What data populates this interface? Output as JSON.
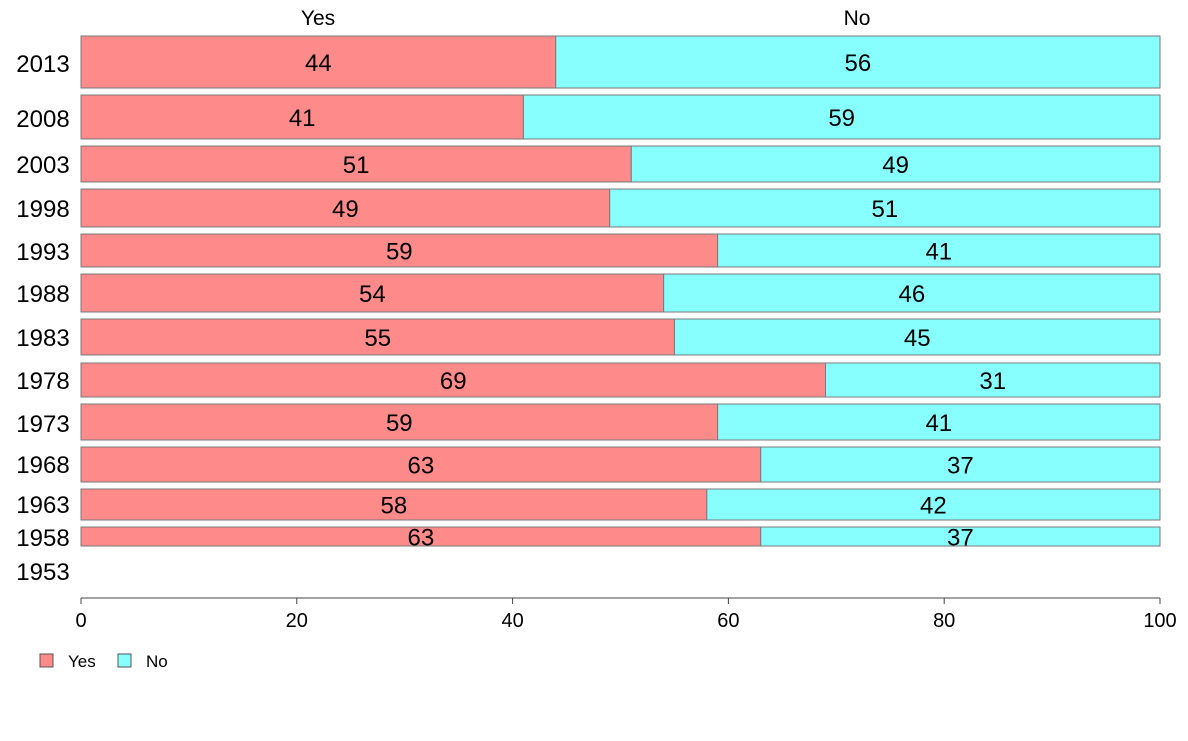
{
  "chart_data": {
    "type": "bar",
    "orientation": "horizontal",
    "stacked": true,
    "column_headers": [
      "Yes",
      "No"
    ],
    "categories": [
      "2013",
      "2008",
      "2003",
      "1998",
      "1993",
      "1988",
      "1983",
      "1978",
      "1973",
      "1968",
      "1963",
      "1958",
      "1953"
    ],
    "series": [
      {
        "name": "Yes",
        "color": "#ff8a8a",
        "values": [
          44,
          41,
          51,
          49,
          59,
          54,
          55,
          69,
          59,
          63,
          58,
          63,
          null
        ]
      },
      {
        "name": "No",
        "color": "#88ffff",
        "values": [
          56,
          59,
          49,
          51,
          41,
          46,
          45,
          31,
          41,
          37,
          42,
          37,
          null
        ]
      }
    ],
    "value_labels": {
      "Yes": [
        "44",
        "41",
        "51",
        "49",
        "59",
        "54",
        "55",
        "69",
        "59",
        "63",
        "58",
        "63",
        ""
      ],
      "No": [
        "56",
        "59",
        "49",
        "51",
        "41",
        "46",
        "45",
        "31",
        "41",
        "37",
        "42",
        "37",
        ""
      ]
    },
    "xlim": [
      0,
      100
    ],
    "xticks": [
      0,
      20,
      40,
      60,
      80,
      100
    ],
    "xtick_labels": [
      "0",
      "20",
      "40",
      "60",
      "80",
      "100"
    ],
    "legend": {
      "placement": "bottom-left",
      "entries": [
        "Yes",
        "No"
      ]
    },
    "grid": false,
    "title": "",
    "xlabel": "",
    "ylabel": ""
  }
}
